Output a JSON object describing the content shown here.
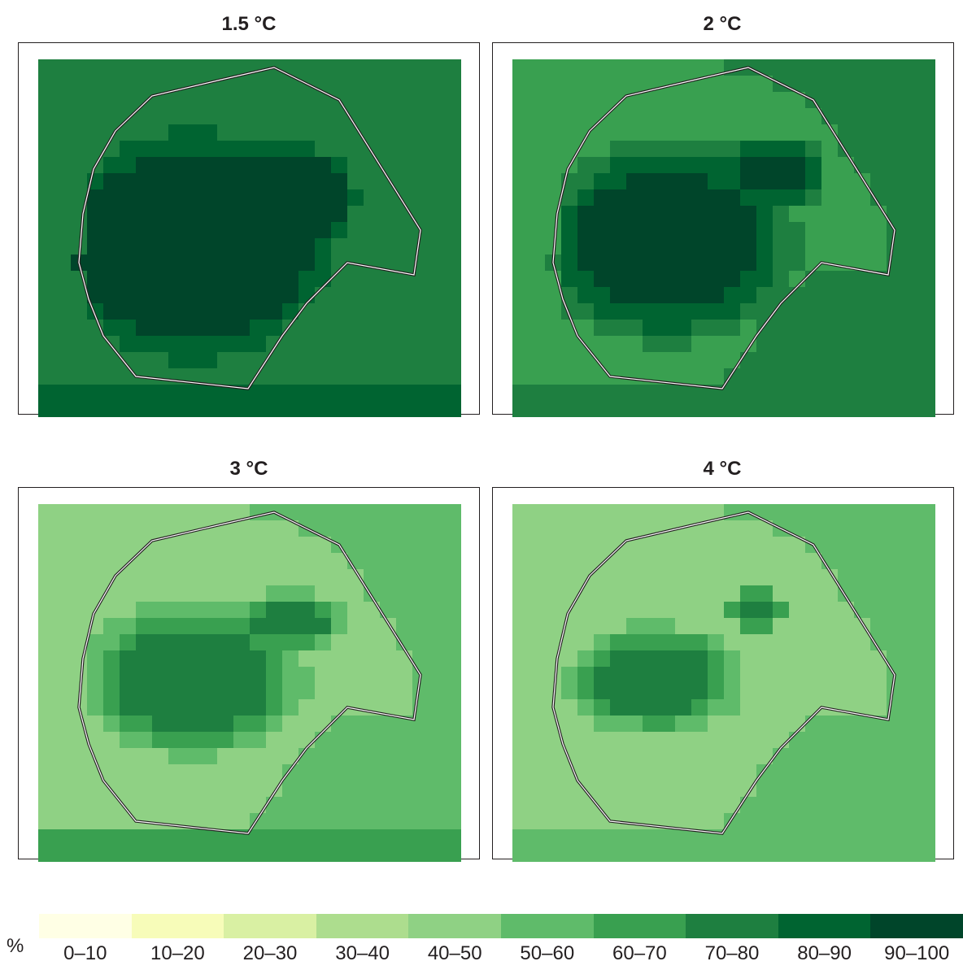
{
  "panels": [
    {
      "title": "1.5 °C",
      "base_level": 7,
      "bottom_level": 8
    },
    {
      "title": "2 °C",
      "base_level": 6,
      "bottom_level": 7
    },
    {
      "title": "3 °C",
      "base_level": 4,
      "bottom_level": 6
    },
    {
      "title": "4 °C",
      "base_level": 4,
      "bottom_level": 5
    }
  ],
  "legend": {
    "unit": "%",
    "items": [
      {
        "label": "0–10",
        "color": "#ffffe5"
      },
      {
        "label": "10–20",
        "color": "#f7fcb9"
      },
      {
        "label": "20–30",
        "color": "#d9f0a3"
      },
      {
        "label": "30–40",
        "color": "#addd8e"
      },
      {
        "label": "40–50",
        "color": "#8fd184"
      },
      {
        "label": "50–60",
        "color": "#5fbb6a"
      },
      {
        "label": "60–70",
        "color": "#39a050"
      },
      {
        "label": "70–80",
        "color": "#1e7f40"
      },
      {
        "label": "80–90",
        "color": "#006431"
      },
      {
        "label": "90–100",
        "color": "#00452a"
      }
    ]
  }
}
